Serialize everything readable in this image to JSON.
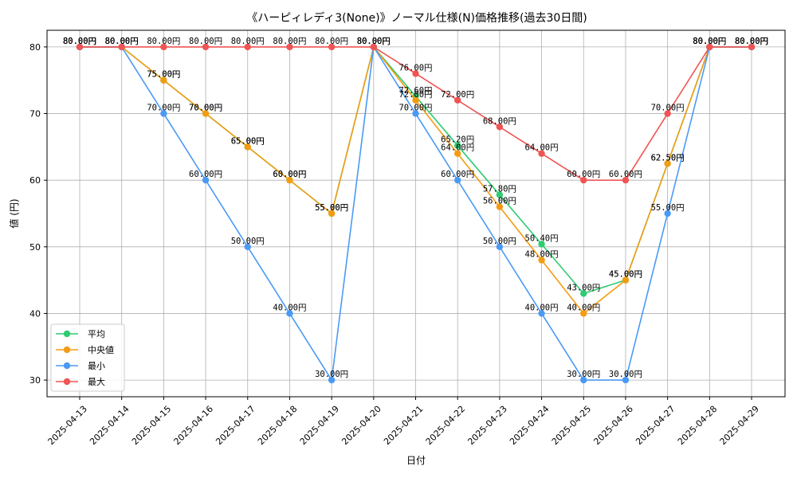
{
  "chart_data": {
    "type": "line",
    "title": "《ハーピィレディ3(None)》ノーマル仕様(N)価格推移(過去30日間)",
    "xlabel": "日付",
    "ylabel": "値 (円)",
    "categories": [
      "2025-04-13",
      "2025-04-14",
      "2025-04-15",
      "2025-04-16",
      "2025-04-17",
      "2025-04-18",
      "2025-04-19",
      "2025-04-20",
      "2025-04-21",
      "2025-04-22",
      "2025-04-23",
      "2025-04-24",
      "2025-04-25",
      "2025-04-26",
      "2025-04-27",
      "2025-04-28",
      "2025-04-29"
    ],
    "ylim": [
      27.5,
      82.5
    ],
    "yticks": [
      30,
      40,
      50,
      60,
      70,
      80
    ],
    "grid": true,
    "legend_position": "lower-left",
    "value_suffix": "円",
    "series": [
      {
        "name": "平均",
        "color": "#2ecc71",
        "values": [
          80,
          80,
          75,
          70,
          65,
          60,
          55,
          80,
          72.6,
          65.2,
          57.8,
          50.4,
          43,
          45,
          62.5,
          80,
          80
        ]
      },
      {
        "name": "中央値",
        "color": "#f39c12",
        "values": [
          80,
          80,
          75,
          70,
          65,
          60,
          55,
          80,
          72,
          64,
          56,
          48,
          40,
          45,
          62.5,
          80,
          80
        ]
      },
      {
        "name": "最小",
        "color": "#4a9af5",
        "values": [
          80,
          80,
          70,
          60,
          50,
          40,
          30,
          80,
          70,
          60,
          50,
          40,
          30,
          30,
          55,
          80,
          80
        ]
      },
      {
        "name": "最大",
        "color": "#f05454",
        "values": [
          80,
          80,
          80,
          80,
          80,
          80,
          80,
          80,
          76,
          72,
          68,
          64,
          60,
          60,
          70,
          80,
          80
        ]
      }
    ]
  }
}
